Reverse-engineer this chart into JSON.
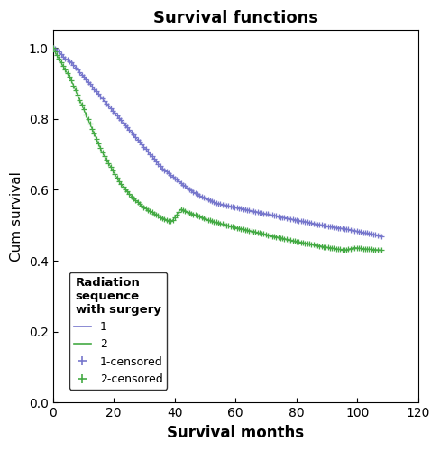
{
  "title": "Survival functions",
  "xlabel": "Survival months",
  "ylabel": "Cum survival",
  "xlim": [
    0,
    120
  ],
  "ylim": [
    0.0,
    1.05
  ],
  "xticks": [
    0,
    20,
    40,
    60,
    80,
    100,
    120
  ],
  "yticks": [
    0.0,
    0.2,
    0.4,
    0.6,
    0.8,
    1.0
  ],
  "color1": "#7777cc",
  "color2": "#44aa44",
  "legend_title": "Radiation\nsequence\nwith surgery",
  "t1_pts": [
    0,
    2,
    4,
    6,
    8,
    10,
    12,
    14,
    16,
    18,
    20,
    22,
    24,
    26,
    28,
    30,
    33,
    36,
    39,
    42,
    45,
    48,
    51,
    54,
    57,
    60,
    63,
    66,
    69,
    72,
    75,
    78,
    81,
    84,
    87,
    90,
    93,
    96,
    99,
    102,
    105,
    108
  ],
  "y1_pts": [
    1.0,
    0.99,
    0.97,
    0.96,
    0.94,
    0.92,
    0.9,
    0.88,
    0.86,
    0.84,
    0.82,
    0.8,
    0.78,
    0.76,
    0.74,
    0.72,
    0.69,
    0.66,
    0.64,
    0.62,
    0.6,
    0.585,
    0.572,
    0.562,
    0.556,
    0.551,
    0.545,
    0.54,
    0.534,
    0.529,
    0.523,
    0.518,
    0.513,
    0.508,
    0.503,
    0.498,
    0.494,
    0.49,
    0.485,
    0.48,
    0.475,
    0.47
  ],
  "t2_pts": [
    0,
    2,
    4,
    6,
    8,
    10,
    12,
    14,
    16,
    18,
    20,
    22,
    24,
    26,
    28,
    30,
    33,
    36,
    39,
    42,
    45,
    48,
    51,
    54,
    57,
    60,
    63,
    66,
    69,
    72,
    75,
    78,
    81,
    84,
    87,
    90,
    93,
    96,
    99,
    102,
    105,
    108
  ],
  "y2_pts": [
    1.0,
    0.97,
    0.94,
    0.91,
    0.87,
    0.83,
    0.79,
    0.75,
    0.71,
    0.68,
    0.65,
    0.62,
    0.6,
    0.58,
    0.565,
    0.55,
    0.535,
    0.52,
    0.51,
    0.545,
    0.535,
    0.525,
    0.515,
    0.508,
    0.5,
    0.494,
    0.488,
    0.482,
    0.476,
    0.47,
    0.464,
    0.458,
    0.453,
    0.448,
    0.443,
    0.438,
    0.434,
    0.43,
    0.437,
    0.434,
    0.432,
    0.43
  ]
}
